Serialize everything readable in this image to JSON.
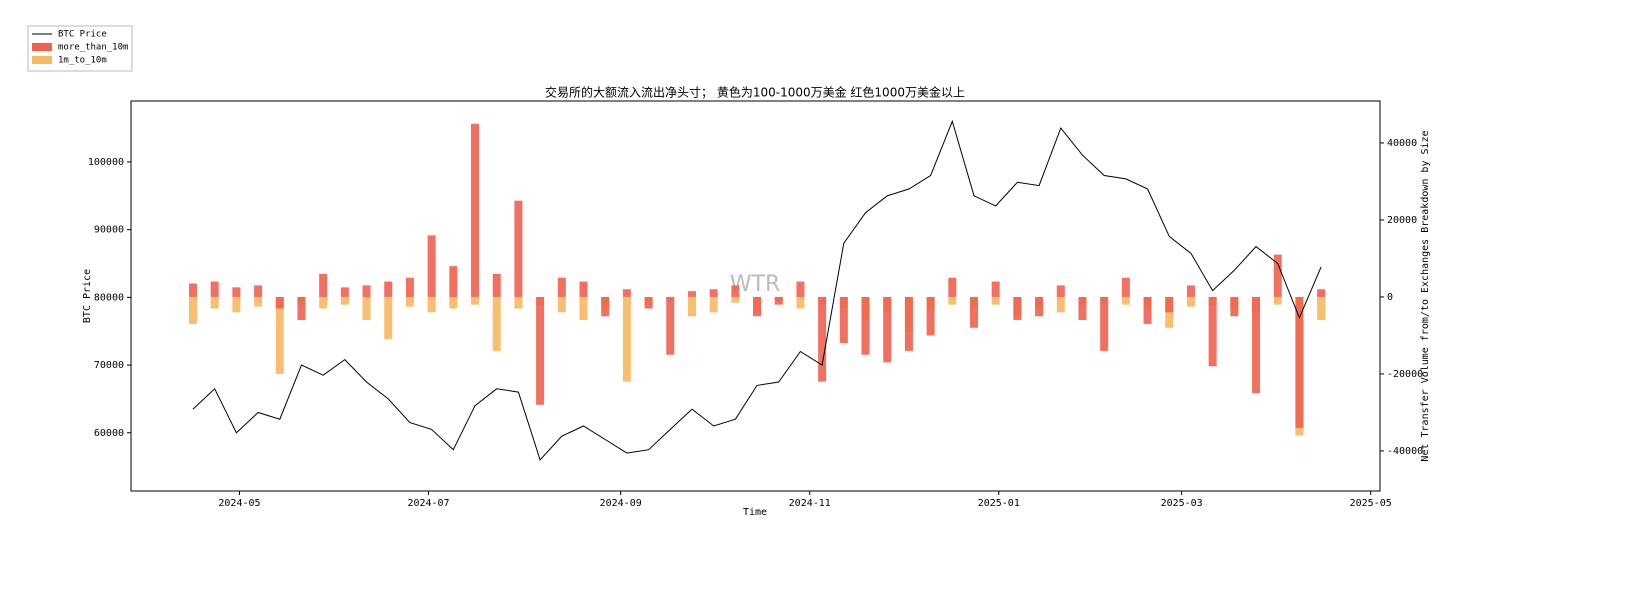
{
  "chart_data": {
    "type": "combo",
    "title": "交易所的大额流入流出净头寸； 黄色为100-1000万美金 红色1000万美金以上",
    "watermark": "WTR",
    "xlabel": "Time",
    "ylabel": "BTC Price",
    "y2label": "Net Transfer Volume from/to Exchanges Breakdown by Size",
    "x": [
      "2024-04-16",
      "2024-04-23",
      "2024-04-30",
      "2024-05-07",
      "2024-05-14",
      "2024-05-21",
      "2024-05-28",
      "2024-06-04",
      "2024-06-11",
      "2024-06-18",
      "2024-06-25",
      "2024-07-02",
      "2024-07-09",
      "2024-07-16",
      "2024-07-23",
      "2024-07-30",
      "2024-08-06",
      "2024-08-13",
      "2024-08-20",
      "2024-08-27",
      "2024-09-03",
      "2024-09-10",
      "2024-09-17",
      "2024-09-24",
      "2024-10-01",
      "2024-10-08",
      "2024-10-15",
      "2024-10-22",
      "2024-10-29",
      "2024-11-05",
      "2024-11-12",
      "2024-11-19",
      "2024-11-26",
      "2024-12-03",
      "2024-12-10",
      "2024-12-17",
      "2024-12-24",
      "2024-12-31",
      "2025-01-07",
      "2025-01-14",
      "2025-01-21",
      "2025-01-28",
      "2025-02-04",
      "2025-02-11",
      "2025-02-18",
      "2025-02-25",
      "2025-03-04",
      "2025-03-11",
      "2025-03-18",
      "2025-03-25",
      "2025-04-01",
      "2025-04-08",
      "2025-04-15"
    ],
    "xlim": [
      "2024-03-27",
      "2025-05-04"
    ],
    "xticks": [
      {
        "value": "2024-05-01",
        "label": "2024-05"
      },
      {
        "value": "2024-07-01",
        "label": "2024-07"
      },
      {
        "value": "2024-09-01",
        "label": "2024-09"
      },
      {
        "value": "2024-11-01",
        "label": "2024-11"
      },
      {
        "value": "2025-01-01",
        "label": "2025-01"
      },
      {
        "value": "2025-03-01",
        "label": "2025-03"
      },
      {
        "value": "2025-05-01",
        "label": "2025-05"
      }
    ],
    "ylim": [
      51400,
      109000
    ],
    "yticks": [
      60000,
      70000,
      80000,
      90000,
      100000
    ],
    "y2lim": [
      -50400,
      50900
    ],
    "y2ticks": [
      -40000,
      -20000,
      0,
      20000,
      40000
    ],
    "legend": "upper left",
    "series": [
      {
        "name": "BTC Price",
        "type": "line",
        "color": "#000000",
        "axis": "y",
        "values": [
          63500,
          66500,
          60000,
          63000,
          62000,
          70000,
          68500,
          70800,
          67500,
          65000,
          61500,
          60500,
          57500,
          64000,
          66500,
          66000,
          56000,
          59500,
          61000,
          59000,
          57000,
          57500,
          60500,
          63500,
          61000,
          62000,
          67000,
          67500,
          72000,
          70000,
          88000,
          92500,
          95000,
          96000,
          98000,
          106000,
          95000,
          93500,
          97000,
          96500,
          105000,
          101000,
          98000,
          97500,
          96000,
          89000,
          86500,
          81000,
          84000,
          87500,
          85000,
          77000,
          84500
        ]
      },
      {
        "name": "more_than_10m",
        "type": "bar",
        "color": "#f0614f",
        "axis": "y2",
        "values": [
          3500,
          4000,
          2500,
          3000,
          -3000,
          -6000,
          6000,
          2500,
          3000,
          4000,
          5000,
          16000,
          8000,
          45000,
          6000,
          25000,
          -28000,
          5000,
          4000,
          -5000,
          2000,
          -3000,
          -15000,
          1500,
          2000,
          3000,
          -5000,
          -2000,
          4000,
          -22000,
          -12000,
          -15000,
          -17000,
          -14000,
          -10000,
          5000,
          -8000,
          4000,
          -6000,
          -5000,
          3000,
          -6000,
          -14000,
          5000,
          -7000,
          -4000,
          3000,
          -18000,
          -5000,
          -25000,
          11000,
          -34000,
          2000
        ]
      },
      {
        "name": "1m_to_10m",
        "type": "bar",
        "color": "#f8b860",
        "axis": "y2",
        "values": [
          -7000,
          -3000,
          -4000,
          -2500,
          -20000,
          -2000,
          -3000,
          -2000,
          -6000,
          -11000,
          -2500,
          -4000,
          -3000,
          -2000,
          -14000,
          -3000,
          -2000,
          -4000,
          -6000,
          -3000,
          -22000,
          -2000,
          -1000,
          -5000,
          -4000,
          -1500,
          -4000,
          -1000,
          -3000,
          -2000,
          -3000,
          -6000,
          -4000,
          -9000,
          -3000,
          -2000,
          -2500,
          -2000,
          -5000,
          -3000,
          -4000,
          -2000,
          -1500,
          -2000,
          -3000,
          -8000,
          -2500,
          -2000,
          -3000,
          -4000,
          -2000,
          -36000,
          -6000
        ]
      }
    ]
  }
}
